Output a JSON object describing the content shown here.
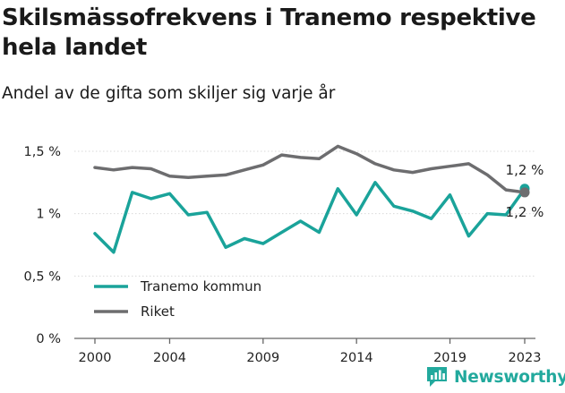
{
  "title": "Skilsmässofrekvens i Tranemo respektive hela landet",
  "subtitle": "Andel av de gifta som skiljer sig varje år",
  "brand": "Newsworthy",
  "chart_data": {
    "type": "line",
    "x": [
      2000,
      2001,
      2002,
      2003,
      2004,
      2005,
      2006,
      2007,
      2008,
      2009,
      2010,
      2011,
      2012,
      2013,
      2014,
      2015,
      2016,
      2017,
      2018,
      2019,
      2020,
      2021,
      2022,
      2023
    ],
    "x_ticks": [
      2000,
      2004,
      2009,
      2014,
      2019,
      2023
    ],
    "y_ticks": [
      0,
      0.5,
      1,
      1.5
    ],
    "y_tick_labels": [
      "0 %",
      "0,5 %",
      "1 %",
      "1,5 %"
    ],
    "ylim": [
      0,
      1.6
    ],
    "series": [
      {
        "name": "Tranemo kommun",
        "color": "#1aa39a",
        "values": [
          0.84,
          0.69,
          1.17,
          1.12,
          1.16,
          0.99,
          1.01,
          0.73,
          0.8,
          0.76,
          0.85,
          0.94,
          0.85,
          1.2,
          0.99,
          1.25,
          1.06,
          1.02,
          0.96,
          1.15,
          0.82,
          1.0,
          0.99,
          1.2
        ],
        "end_label": "1,2 %"
      },
      {
        "name": "Riket",
        "color": "#6d6d6f",
        "values": [
          1.37,
          1.35,
          1.37,
          1.36,
          1.3,
          1.29,
          1.3,
          1.31,
          1.35,
          1.39,
          1.47,
          1.45,
          1.44,
          1.54,
          1.48,
          1.4,
          1.35,
          1.33,
          1.36,
          1.38,
          1.4,
          1.31,
          1.19,
          1.17
        ],
        "end_label": "1,2 %"
      }
    ],
    "legend_position": "bottom-left",
    "grid": true
  }
}
